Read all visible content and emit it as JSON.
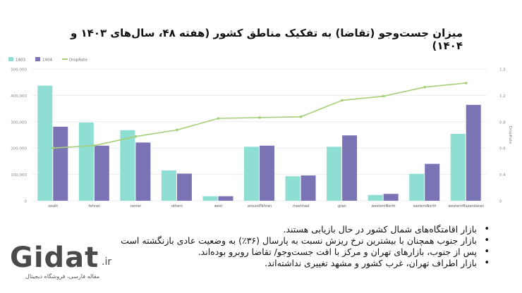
{
  "title": "میزان جست‌وجو (تقاضا) به تفکیک مناطق کشور (هفته ۴۸، سال‌های ۱۴۰۳ و ۱۴۰۴)",
  "chart_data": {
    "type": "bar",
    "categories": [
      "south",
      "tehran",
      "center",
      "others",
      "west",
      "aroundTehran",
      "mashhad",
      "gilan",
      "westernNorth",
      "easternNorth",
      "westernMazandaran"
    ],
    "series": [
      {
        "name": "1403",
        "kind": "bar",
        "color": "#8fded3",
        "values": [
          437000,
          297000,
          268000,
          115000,
          17000,
          205000,
          93000,
          205000,
          22000,
          102000,
          254000
        ]
      },
      {
        "name": "1404",
        "kind": "bar",
        "color": "#7b74b4",
        "values": [
          281000,
          209000,
          221000,
          103000,
          17000,
          209000,
          96000,
          248000,
          26000,
          140000,
          364000
        ]
      },
      {
        "name": "DropRate",
        "kind": "line",
        "axis": "right",
        "color": "#a6cf7a",
        "values": [
          0.64,
          0.67,
          0.78,
          0.86,
          1.0,
          1.01,
          1.02,
          1.22,
          1.27,
          1.38,
          1.43
        ]
      }
    ],
    "y_left": {
      "ylim": [
        0,
        500000
      ],
      "ticks": [
        "0",
        "100,000",
        "200,000",
        "300,000",
        "400,000",
        "500,000"
      ]
    },
    "y_right": {
      "label": "DropRate",
      "ylim": [
        0,
        1.6
      ],
      "ticks": [
        "0",
        "0.4",
        "0.6",
        "0.8",
        "1.2",
        "1.5"
      ]
    },
    "legend_position": "top-left"
  },
  "bullets": [
    "بازار اقامتگاه‌های شمال کشور در حال بازیابی هستند.",
    "بازار جنوب همچنان با بیشترین نرخ ریزش نسبت به پارسال (۳۶٪) به وضعیت عادی بازنگشته است",
    "پس از جنوب، بازارهای تهران و مرکز با افت جست‌وجو/ تقاضا روبرو بوده‌اند.",
    "بازار اطراف تهران، غرب کشور و مشهد تغییری نداشته‌اند."
  ],
  "logo": {
    "word": "Gidat",
    "tld": ".ir",
    "tagline": "مقاله فارسی، فروشگاه دیجیتال"
  }
}
